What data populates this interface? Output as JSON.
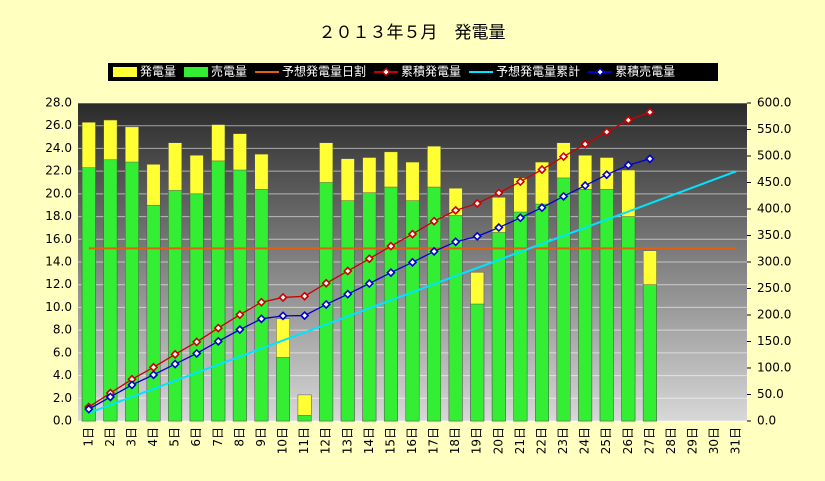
{
  "chart_data": {
    "type": "bar",
    "title": "２０１３年５月　発電量",
    "categories": [
      "1日",
      "2日",
      "3日",
      "4日",
      "5日",
      "6日",
      "7日",
      "8日",
      "9日",
      "10日",
      "11日",
      "12日",
      "13日",
      "14日",
      "15日",
      "16日",
      "17日",
      "18日",
      "19日",
      "20日",
      "21日",
      "22日",
      "23日",
      "24日",
      "25日",
      "26日",
      "27日",
      "28日",
      "29日",
      "30日",
      "31日"
    ],
    "series": [
      {
        "name": "発電量",
        "type": "bar",
        "color": "#ffff33",
        "values": [
          26.3,
          26.5,
          25.9,
          22.6,
          24.5,
          23.4,
          26.1,
          25.3,
          23.5,
          9.0,
          2.3,
          24.5,
          23.1,
          23.2,
          23.7,
          22.8,
          24.2,
          20.5,
          13.1,
          19.7,
          21.4,
          22.8,
          24.5,
          23.4,
          23.2,
          22.1,
          15.0,
          null,
          null,
          null,
          null
        ]
      },
      {
        "name": "売電量",
        "type": "bar",
        "color": "#33ee33",
        "values": [
          22.3,
          23.0,
          22.8,
          19.0,
          20.3,
          20.0,
          22.9,
          22.1,
          20.4,
          5.6,
          0.5,
          21.0,
          19.4,
          20.1,
          20.6,
          19.4,
          20.6,
          18.1,
          10.3,
          16.6,
          18.4,
          19.1,
          21.4,
          20.4,
          20.4,
          18.0,
          12.0,
          null,
          null,
          null,
          null
        ]
      },
      {
        "name": "予想発電量日割",
        "type": "line",
        "color": "#e06010",
        "values": [
          15.2,
          15.2,
          15.2,
          15.2,
          15.2,
          15.2,
          15.2,
          15.2,
          15.2,
          15.2,
          15.2,
          15.2,
          15.2,
          15.2,
          15.2,
          15.2,
          15.2,
          15.2,
          15.2,
          15.2,
          15.2,
          15.2,
          15.2,
          15.2,
          15.2,
          15.2,
          15.2,
          15.2,
          15.2,
          15.2,
          15.2
        ]
      },
      {
        "name": "累積発電量",
        "type": "line",
        "marker": "diamond",
        "axis": "y2",
        "color": "#cc0000",
        "values": [
          26.3,
          52.8,
          78.7,
          101.3,
          125.8,
          149.2,
          175.3,
          200.6,
          224.1,
          233.1,
          235.4,
          259.9,
          283.0,
          306.2,
          329.9,
          352.7,
          376.9,
          397.4,
          410.5,
          430.2,
          451.6,
          474.4,
          498.9,
          522.3,
          545.5,
          567.6,
          582.6,
          null,
          null,
          null,
          null
        ]
      },
      {
        "name": "予想発電量累計",
        "type": "line",
        "axis": "y2",
        "color": "#00e5ff",
        "values": [
          15.2,
          30.4,
          45.6,
          60.8,
          76,
          91.2,
          106.4,
          121.6,
          136.8,
          152,
          167.2,
          182.4,
          197.6,
          212.8,
          228,
          243.2,
          258.4,
          273.6,
          288.8,
          304,
          319.2,
          334.4,
          349.6,
          364.8,
          380,
          395.2,
          410.4,
          425.6,
          440.8,
          456,
          471.2
        ]
      },
      {
        "name": "累積売電量",
        "type": "line",
        "marker": "diamond",
        "axis": "y2",
        "color": "#0000cc",
        "values": [
          22.3,
          45.3,
          68.1,
          87.1,
          107.4,
          127.4,
          150.3,
          172.4,
          192.8,
          198.4,
          198.9,
          219.9,
          239.3,
          259.4,
          280.0,
          299.4,
          320.0,
          338.1,
          348.4,
          365.0,
          383.4,
          402.5,
          423.9,
          444.3,
          464.7,
          482.7,
          494.7,
          null,
          null,
          null,
          null
        ]
      }
    ],
    "ylim": [
      0,
      28
    ],
    "yticks": [
      {
        "value": 0,
        "label": "0.0"
      },
      {
        "value": 2,
        "label": "2.0"
      },
      {
        "value": 4,
        "label": "4.0"
      },
      {
        "value": 6,
        "label": "6.0"
      },
      {
        "value": 8,
        "label": "8.0"
      },
      {
        "value": 10,
        "label": "10.0"
      },
      {
        "value": 12,
        "label": "12.0"
      },
      {
        "value": 14,
        "label": "14.0"
      },
      {
        "value": 16,
        "label": "16.0"
      },
      {
        "value": 18,
        "label": "18.0"
      },
      {
        "value": 20,
        "label": "20.0"
      },
      {
        "value": 22,
        "label": "22.0"
      },
      {
        "value": 24,
        "label": "24.0"
      },
      {
        "value": 26,
        "label": "26.0"
      },
      {
        "value": 28,
        "label": "28.0"
      }
    ],
    "y2lim": [
      0,
      600
    ],
    "y2ticks": [
      {
        "value": 0,
        "label": "0.0"
      },
      {
        "value": 50,
        "label": "50.0"
      },
      {
        "value": 100,
        "label": "100.0"
      },
      {
        "value": 150,
        "label": "150.0"
      },
      {
        "value": 200,
        "label": "200.0"
      },
      {
        "value": 250,
        "label": "250.0"
      },
      {
        "value": 300,
        "label": "300.0"
      },
      {
        "value": 350,
        "label": "350.0"
      },
      {
        "value": 400,
        "label": "400.0"
      },
      {
        "value": 450,
        "label": "450.0"
      },
      {
        "value": 500,
        "label": "500.0"
      },
      {
        "value": 550,
        "label": "550.0"
      },
      {
        "value": 600,
        "label": "600.0"
      }
    ],
    "grid": true,
    "legend": "top"
  }
}
